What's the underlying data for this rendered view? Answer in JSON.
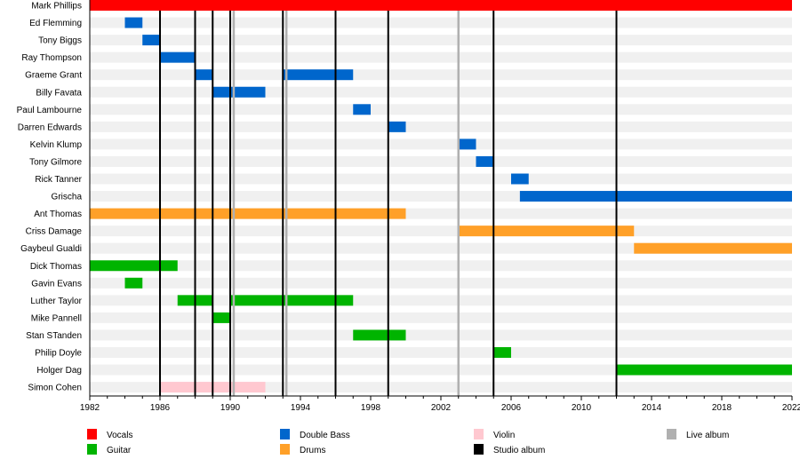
{
  "chart_data": {
    "type": "timeline",
    "xlim": [
      1982,
      2022
    ],
    "x_ticks": [
      1982,
      1986,
      1990,
      1994,
      1998,
      2002,
      2006,
      2010,
      2014,
      2018,
      2022
    ],
    "minor_tick_step": 1,
    "colors": {
      "Vocals": "#ff0000",
      "Double Bass": "#0066cc",
      "Violin": "#ffc8d0",
      "Live album": "#b0b0b0",
      "Guitar": "#00b400",
      "Drums": "#ffa028",
      "Studio album": "#000000"
    },
    "members": [
      {
        "name": "Mark Phillips",
        "role": "Vocals",
        "periods": [
          [
            1982,
            2022
          ]
        ]
      },
      {
        "name": "Ed Flemming",
        "role": "Double Bass",
        "periods": [
          [
            1984,
            1985
          ]
        ]
      },
      {
        "name": "Tony Biggs",
        "role": "Double Bass",
        "periods": [
          [
            1985,
            1986
          ]
        ]
      },
      {
        "name": "Ray Thompson",
        "role": "Double Bass",
        "periods": [
          [
            1986,
            1988
          ]
        ]
      },
      {
        "name": "Graeme Grant",
        "role": "Double Bass",
        "periods": [
          [
            1988,
            1989
          ],
          [
            1993,
            1997
          ]
        ]
      },
      {
        "name": "Billy Favata",
        "role": "Double Bass",
        "periods": [
          [
            1989,
            1992
          ]
        ]
      },
      {
        "name": "Paul Lambourne",
        "role": "Double Bass",
        "periods": [
          [
            1997,
            1998
          ]
        ]
      },
      {
        "name": "Darren Edwards",
        "role": "Double Bass",
        "periods": [
          [
            1999,
            2000
          ]
        ]
      },
      {
        "name": "Kelvin Klump",
        "role": "Double Bass",
        "periods": [
          [
            2003,
            2004
          ]
        ]
      },
      {
        "name": "Tony Gilmore",
        "role": "Double Bass",
        "periods": [
          [
            2004,
            2005
          ]
        ]
      },
      {
        "name": "Rick Tanner",
        "role": "Double Bass",
        "periods": [
          [
            2006,
            2007
          ]
        ]
      },
      {
        "name": "Grischa",
        "role": "Double Bass",
        "periods": [
          [
            2006.5,
            2022
          ]
        ]
      },
      {
        "name": "Ant Thomas",
        "role": "Drums",
        "periods": [
          [
            1982,
            2000
          ]
        ]
      },
      {
        "name": "Criss Damage",
        "role": "Drums",
        "periods": [
          [
            2003,
            2013
          ]
        ]
      },
      {
        "name": "Gaybeul Gualdi",
        "role": "Drums",
        "periods": [
          [
            2013,
            2022
          ]
        ]
      },
      {
        "name": "Dick Thomas",
        "role": "Guitar",
        "periods": [
          [
            1982,
            1987
          ]
        ]
      },
      {
        "name": "Gavin Evans",
        "role": "Guitar",
        "periods": [
          [
            1984,
            1985
          ]
        ]
      },
      {
        "name": "Luther Taylor",
        "role": "Guitar",
        "periods": [
          [
            1987,
            1989
          ],
          [
            1990,
            1997
          ]
        ]
      },
      {
        "name": "Mike Pannell",
        "role": "Guitar",
        "periods": [
          [
            1989,
            1990
          ]
        ]
      },
      {
        "name": "Stan STanden",
        "role": "Guitar",
        "periods": [
          [
            1997,
            2000
          ]
        ]
      },
      {
        "name": "Philip Doyle",
        "role": "Guitar",
        "periods": [
          [
            2005,
            2006
          ]
        ]
      },
      {
        "name": "Holger Dag",
        "role": "Guitar",
        "periods": [
          [
            2012,
            2022
          ]
        ]
      },
      {
        "name": "Simon Cohen",
        "role": "Violin",
        "periods": [
          [
            1986,
            1992
          ]
        ]
      }
    ],
    "studio_albums": [
      1986,
      1988,
      1989,
      1990,
      1993,
      1996,
      1999,
      2005,
      2012
    ],
    "live_albums": [
      1990.2,
      1993.2,
      2003
    ],
    "legend": {
      "placement": "bottom",
      "items": [
        "Vocals",
        "Double Bass",
        "Violin",
        "Live album",
        "Guitar",
        "Drums",
        "Studio album"
      ]
    }
  }
}
